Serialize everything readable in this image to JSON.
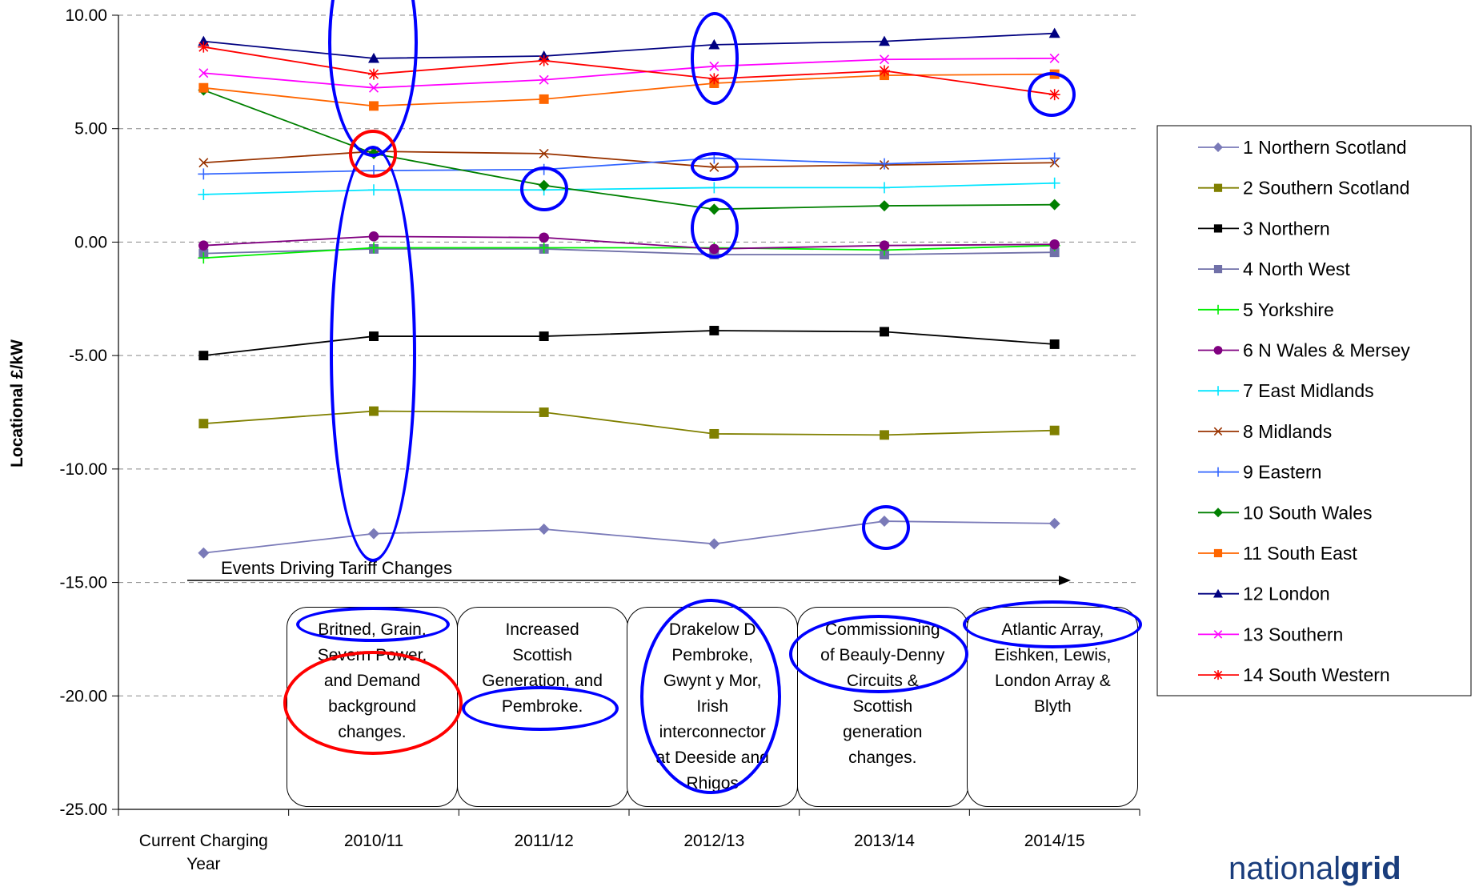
{
  "chart_data": {
    "type": "line",
    "ylabel": "Locational £/kW",
    "ylim": [
      -25,
      10
    ],
    "yticks": [
      "10.00",
      "5.00",
      "0.00",
      "-5.00",
      "-10.00",
      "-15.00",
      "-20.00",
      "-25.00"
    ],
    "categories": [
      "Current Charging Year",
      "2010/11",
      "2011/12",
      "2012/13",
      "2013/14",
      "2014/15"
    ],
    "grid": "horizontal dashed",
    "legend_position": "right",
    "series": [
      {
        "name": "1  Northern Scotland",
        "color": "#7a7ab8",
        "marker": "diamond",
        "values": [
          -13.7,
          -12.85,
          -12.65,
          -13.3,
          -12.3,
          -12.4
        ]
      },
      {
        "name": "2  Southern Scotland",
        "color": "#808000",
        "marker": "square",
        "values": [
          -8.0,
          -7.45,
          -7.5,
          -8.45,
          -8.5,
          -8.3
        ]
      },
      {
        "name": "3  Northern",
        "color": "#000000",
        "marker": "square",
        "values": [
          -5.0,
          -4.15,
          -4.15,
          -3.9,
          -3.95,
          -4.5
        ]
      },
      {
        "name": "4  North West",
        "color": "#7070a8",
        "marker": "square",
        "values": [
          -0.5,
          -0.3,
          -0.3,
          -0.55,
          -0.55,
          -0.45
        ]
      },
      {
        "name": "5  Yorkshire",
        "color": "#00ee00",
        "marker": "plus",
        "values": [
          -0.7,
          -0.25,
          -0.25,
          -0.25,
          -0.35,
          -0.15
        ]
      },
      {
        "name": "6  N Wales & Mersey",
        "color": "#800080",
        "marker": "circle",
        "values": [
          -0.15,
          0.25,
          0.2,
          -0.3,
          -0.15,
          -0.1
        ]
      },
      {
        "name": "7  East Midlands",
        "color": "#00e5ff",
        "marker": "plus",
        "values": [
          2.1,
          2.3,
          2.3,
          2.4,
          2.4,
          2.6
        ]
      },
      {
        "name": "8  Midlands",
        "color": "#993300",
        "marker": "x",
        "values": [
          3.5,
          4.0,
          3.9,
          3.3,
          3.4,
          3.5
        ]
      },
      {
        "name": "9  Eastern",
        "color": "#3366ff",
        "marker": "plus",
        "values": [
          3.0,
          3.15,
          3.2,
          3.7,
          3.45,
          3.7
        ]
      },
      {
        "name": "10  South Wales",
        "color": "#008000",
        "marker": "diamond",
        "values": [
          6.7,
          3.9,
          2.5,
          1.45,
          1.6,
          1.65
        ]
      },
      {
        "name": "11  South East",
        "color": "#ff6600",
        "marker": "square",
        "values": [
          6.8,
          6.0,
          6.3,
          7.0,
          7.35,
          7.4
        ]
      },
      {
        "name": "12  London",
        "color": "#000080",
        "marker": "triangle",
        "values": [
          8.85,
          8.1,
          8.2,
          8.7,
          8.85,
          9.2
        ]
      },
      {
        "name": "13  Southern",
        "color": "#ff00ff",
        "marker": "x",
        "values": [
          7.45,
          6.8,
          7.15,
          7.75,
          8.05,
          8.1
        ]
      },
      {
        "name": "14  South Western",
        "color": "#ff0000",
        "marker": "asterisk",
        "values": [
          8.6,
          7.4,
          8.0,
          7.2,
          7.55,
          6.5
        ]
      }
    ],
    "annotations": {
      "events_title": "Events Driving Tariff Changes",
      "events": [
        "Britned, Grain, Severn Power, and Demand background changes.",
        "Increased Scottish Generation, and Pembroke.",
        "Drakelow D Pembroke, Gwynt y Mor, Irish interconnector at Deeside and Rhigos",
        "Commissioning of Beauly-Denny Circuits & Scottish generation changes.",
        "Atlantic Array, Eishken, Lewis, London Array & Blyth"
      ]
    }
  },
  "events_lines": [
    [
      "Britned, Grain,",
      "Severn Power,",
      "and Demand",
      "background",
      "changes."
    ],
    [
      "Increased",
      "Scottish",
      "Generation, and",
      "Pembroke."
    ],
    [
      "Drakelow D",
      "Pembroke,",
      "Gwynt y Mor,",
      "Irish",
      "interconnector",
      "at Deeside and",
      "Rhigos"
    ],
    [
      "Commissioning",
      "of Beauly-Denny",
      "Circuits &",
      "Scottish",
      "generation",
      "changes."
    ],
    [
      "Atlantic Array,",
      "Eishken, Lewis,",
      "London Array &",
      "Blyth"
    ]
  ],
  "xtick_lines": [
    [
      "Current Charging",
      "Year"
    ],
    [
      "2010/11"
    ],
    [
      "2011/12"
    ],
    [
      "2012/13"
    ],
    [
      "2013/14"
    ],
    [
      "2014/15"
    ]
  ],
  "brand": {
    "part1": "national",
    "part2": "grid"
  },
  "colors": {
    "highlight_blue": "#0000ff",
    "highlight_red": "#ff0000"
  }
}
